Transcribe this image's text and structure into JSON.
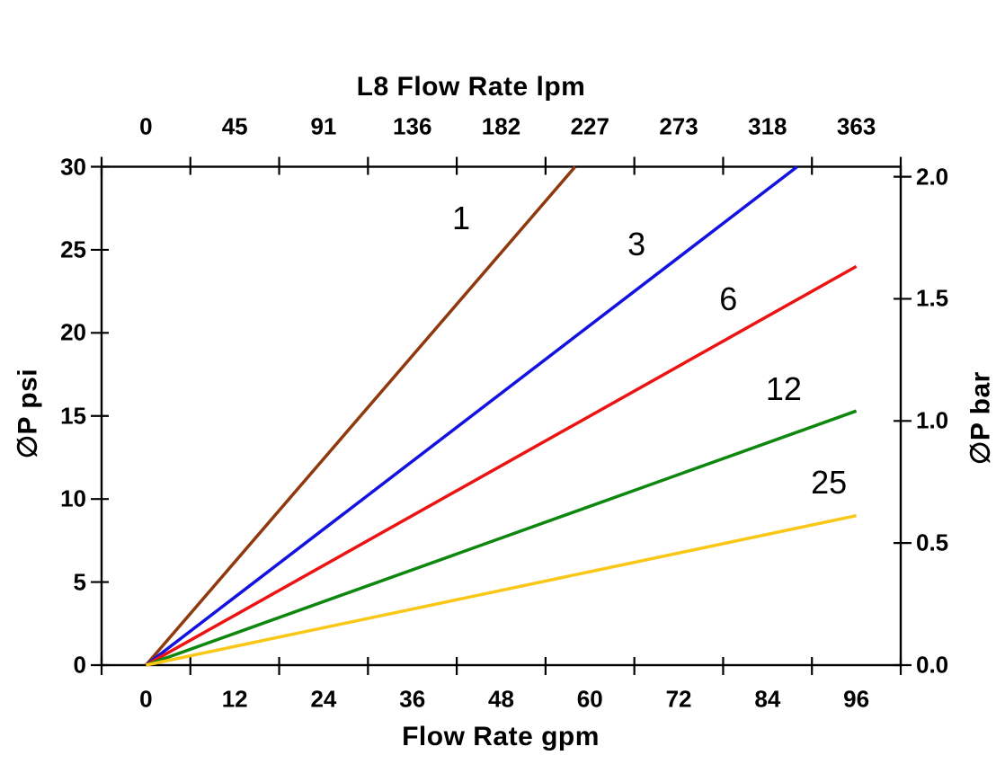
{
  "chart_data": {
    "type": "line",
    "title_top": "L8 Flow Rate lpm",
    "xlabel_bottom": "Flow Rate gpm",
    "ylabel_left": "∅P psi",
    "ylabel_right": "∅P bar",
    "x_bottom_ticks": [
      0,
      12,
      24,
      36,
      48,
      60,
      72,
      84,
      96
    ],
    "x_top_ticks": [
      0,
      45,
      91,
      136,
      182,
      227,
      273,
      318,
      363
    ],
    "y_left_ticks": [
      0,
      5,
      10,
      15,
      20,
      25,
      30
    ],
    "y_right_ticks": [
      "0.0",
      "0.5",
      "1.0",
      "1.5",
      "2.0"
    ],
    "xlim_gpm": [
      0,
      96
    ],
    "ylim_psi": [
      0,
      30
    ],
    "ylim_bar": [
      0.0,
      2.0
    ],
    "grid": false,
    "legend_position": "inline-labels-on-lines",
    "axis_color": "#000000",
    "series": [
      {
        "label": "1",
        "color": "#8F3A0E",
        "points_gpm_psi": [
          [
            0,
            0
          ],
          [
            58,
            30
          ]
        ],
        "label_pos_gpm_psi": [
          42.6,
          26.9
        ]
      },
      {
        "label": "3",
        "color": "#1313E0",
        "points_gpm_psi": [
          [
            0,
            0
          ],
          [
            88,
            30
          ]
        ],
        "label_pos_gpm_psi": [
          66.3,
          25.3
        ]
      },
      {
        "label": "6",
        "color": "#EC1313",
        "points_gpm_psi": [
          [
            0,
            0
          ],
          [
            96,
            24
          ]
        ],
        "label_pos_gpm_psi": [
          78.7,
          22.0
        ]
      },
      {
        "label": "12",
        "color": "#0D870D",
        "points_gpm_psi": [
          [
            0,
            0
          ],
          [
            96,
            15.3
          ]
        ],
        "label_pos_gpm_psi": [
          86.2,
          16.6
        ]
      },
      {
        "label": "25",
        "color": "#F9C716",
        "points_gpm_psi": [
          [
            0,
            0
          ],
          [
            96,
            9
          ]
        ],
        "label_pos_gpm_psi": [
          92.3,
          11.0
        ]
      }
    ]
  }
}
